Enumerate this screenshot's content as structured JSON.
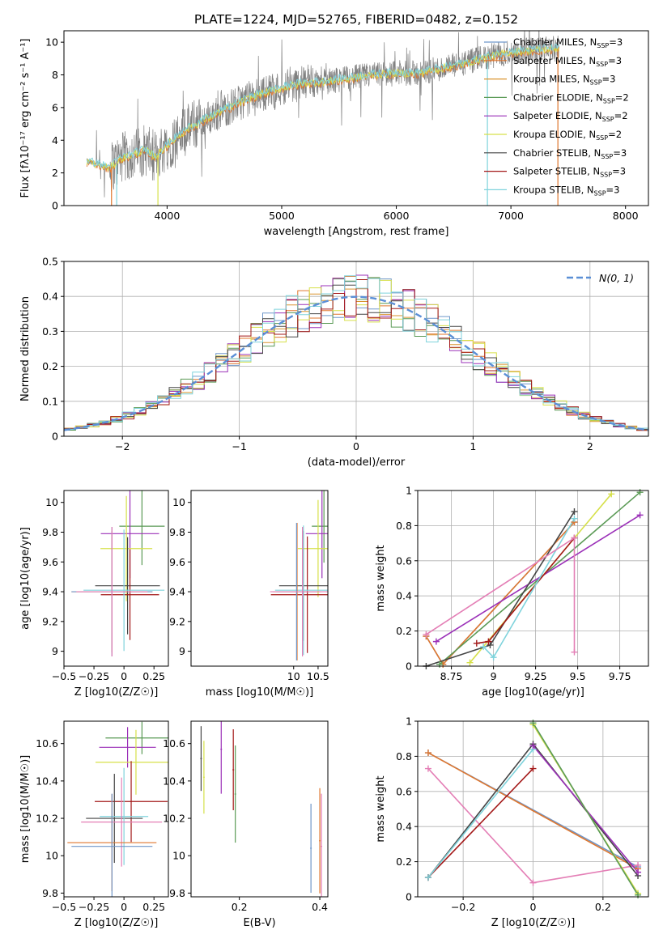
{
  "figure_title": "PLATE=1224, MJD=52765, FIBERID=0482, z=0.152",
  "colors": {
    "data": "#808080",
    "chabrier_miles": "#6f96c9",
    "salpeter_miles": "#e0772e",
    "kroupa_miles": "#d9932e",
    "chabrier_elodie": "#5a9a55",
    "salpeter_elodie": "#9b30b8",
    "kroupa_elodie": "#d6e04a",
    "chabrier_stelib": "#454545",
    "salpeter_stelib": "#a31818",
    "kroupa_stelib": "#7fd3dc",
    "pink": "#e47fb6",
    "gauss": "#5b8fd6"
  },
  "chart_data": [
    {
      "id": "spectrum",
      "type": "line",
      "xlabel": "wavelength [Angstrom, rest frame]",
      "ylabel": "Flux [fλ10⁻¹⁷ erg cm⁻² s⁻¹ A⁻¹]",
      "xlim": [
        3100,
        8200
      ],
      "ylim": [
        0,
        10.7
      ],
      "xticks": [
        4000,
        5000,
        6000,
        7000,
        8000
      ],
      "yticks": [
        0,
        2,
        4,
        6,
        8,
        10
      ],
      "legend": [
        "Chabrier MILES, N_SSP=3",
        "Salpeter MILES, N_SSP=3",
        "Kroupa MILES, N_SSP=3",
        "Chabrier ELODIE, N_SSP=2",
        "Salpeter ELODIE, N_SSP=2",
        "Kroupa ELODIE, N_SSP=2",
        "Chabrier STELIB, N_SSP=3",
        "Salpeter STELIB, N_SSP=3",
        "Kroupa STELIB, N_SSP=3"
      ],
      "legend_location": "upper right",
      "continuum_x": [
        3300,
        3500,
        3600,
        3700,
        3800,
        3900,
        4000,
        4200,
        4400,
        4600,
        4800,
        5000,
        5200,
        5400,
        5600,
        5800,
        6000,
        6200,
        6400,
        6600,
        6800,
        7000,
        7200,
        7400
      ],
      "continuum_y": [
        2.7,
        2.3,
        2.9,
        3.1,
        3.4,
        3.0,
        3.7,
        4.8,
        5.5,
        6.2,
        6.8,
        7.2,
        7.5,
        7.6,
        7.8,
        8.0,
        8.1,
        8.1,
        8.4,
        8.7,
        9.1,
        9.4,
        9.5,
        9.6
      ]
    },
    {
      "id": "residuals",
      "type": "histogram",
      "xlabel": "(data-model)/error",
      "ylabel": "Normed distribution",
      "xlim": [
        -2.5,
        2.5
      ],
      "ylim": [
        0,
        0.5
      ],
      "xticks": [
        -2,
        -1,
        0,
        1,
        2
      ],
      "yticks": [
        0.0,
        0.1,
        0.2,
        0.3,
        0.4,
        0.5
      ],
      "gaussian_label": "N(0, 1)",
      "grid": true
    },
    {
      "id": "age_vs_Z",
      "type": "scatter",
      "xlabel": "Z [log10(Z/Z☉)]",
      "ylabel": "age [log10(age/yr)]",
      "xlim": [
        -0.5,
        0.37
      ],
      "ylim": [
        8.9,
        10.08
      ],
      "xticks": [
        -0.5,
        -0.25,
        0.0,
        0.25
      ],
      "yticks": [
        9.0,
        9.2,
        9.4,
        9.6,
        9.8,
        10.0
      ],
      "points": [
        {
          "x": 0.15,
          "y": 9.84,
          "c": "chabrier_elodie"
        },
        {
          "x": 0.05,
          "y": 9.79,
          "c": "salpeter_elodie"
        },
        {
          "x": 0.02,
          "y": 9.69,
          "c": "kroupa_elodie"
        },
        {
          "x": 0.03,
          "y": 9.44,
          "c": "chabrier_stelib"
        },
        {
          "x": 0.05,
          "y": 9.38,
          "c": "salpeter_stelib"
        },
        {
          "x": 0.0,
          "y": 9.41,
          "c": "kroupa_stelib"
        },
        {
          "x": -0.1,
          "y": 9.4,
          "c": "salpeter_miles"
        },
        {
          "x": -0.1,
          "y": 9.4,
          "c": "chabrier_miles"
        },
        {
          "x": -0.1,
          "y": 9.4,
          "c": "pink"
        }
      ]
    },
    {
      "id": "age_vs_mass",
      "type": "scatter",
      "xlabel": "mass [log10(M/M☉)]",
      "ylabel": "",
      "xlim": [
        7.9,
        10.7
      ],
      "ylim": [
        8.9,
        10.08
      ],
      "xticks": [
        10.0,
        10.5
      ],
      "yticks": [
        9.0,
        9.2,
        9.4,
        9.6,
        9.8,
        10.0
      ],
      "points": [
        {
          "x": 10.62,
          "y": 9.84,
          "c": "chabrier_elodie"
        },
        {
          "x": 10.58,
          "y": 9.79,
          "c": "salpeter_elodie"
        },
        {
          "x": 10.5,
          "y": 9.69,
          "c": "kroupa_elodie"
        },
        {
          "x": 10.2,
          "y": 9.44,
          "c": "chabrier_stelib"
        },
        {
          "x": 10.28,
          "y": 9.38,
          "c": "salpeter_stelib"
        },
        {
          "x": 10.2,
          "y": 9.41,
          "c": "kroupa_stelib"
        },
        {
          "x": 10.07,
          "y": 9.4,
          "c": "salpeter_miles"
        },
        {
          "x": 10.06,
          "y": 9.4,
          "c": "chabrier_miles"
        },
        {
          "x": 10.18,
          "y": 9.4,
          "c": "pink"
        }
      ]
    },
    {
      "id": "weight_vs_age",
      "type": "line",
      "xlabel": "age [log10(age/yr)]",
      "ylabel": "mass weight",
      "xlim": [
        8.55,
        9.92
      ],
      "ylim": [
        0,
        1
      ],
      "xticks": [
        8.75,
        9.0,
        9.25,
        9.5,
        9.75
      ],
      "yticks": [
        0.0,
        0.2,
        0.4,
        0.6,
        0.8,
        1.0
      ],
      "grid": true,
      "series": [
        {
          "c": "chabrier_miles",
          "x": [
            8.6,
            8.7,
            9.48
          ],
          "y": [
            0.17,
            0.01,
            0.82
          ]
        },
        {
          "c": "salpeter_miles",
          "x": [
            8.6,
            8.7,
            9.48
          ],
          "y": [
            0.17,
            0.01,
            0.82
          ]
        },
        {
          "c": "chabrier_elodie",
          "x": [
            8.68,
            9.87
          ],
          "y": [
            0.01,
            0.99
          ]
        },
        {
          "c": "salpeter_elodie",
          "x": [
            8.66,
            9.87
          ],
          "y": [
            0.14,
            0.86
          ]
        },
        {
          "c": "kroupa_elodie",
          "x": [
            8.86,
            9.7
          ],
          "y": [
            0.02,
            0.98
          ]
        },
        {
          "c": "chabrier_stelib",
          "x": [
            8.6,
            8.98,
            9.48
          ],
          "y": [
            0.0,
            0.12,
            0.88
          ]
        },
        {
          "c": "salpeter_stelib",
          "x": [
            8.9,
            8.97,
            9.48
          ],
          "y": [
            0.13,
            0.14,
            0.73
          ]
        },
        {
          "c": "kroupa_stelib",
          "x": [
            8.94,
            9.0,
            9.48
          ],
          "y": [
            0.11,
            0.05,
            0.84
          ]
        },
        {
          "c": "pink",
          "x": [
            8.6,
            9.48,
            9.48
          ],
          "y": [
            0.18,
            0.73,
            0.08
          ]
        }
      ]
    },
    {
      "id": "mass_vs_Z",
      "type": "scatter",
      "xlabel": "Z [log10(Z/Z☉)]",
      "ylabel": "mass [log10(M/M☉)]",
      "xlim": [
        -0.5,
        0.37
      ],
      "ylim": [
        9.78,
        10.72
      ],
      "xticks": [
        -0.5,
        -0.25,
        0.0,
        0.25
      ],
      "yticks": [
        9.8,
        10.0,
        10.2,
        10.4,
        10.6
      ],
      "points": [
        {
          "x": 0.15,
          "y": 10.63,
          "c": "chabrier_elodie"
        },
        {
          "x": 0.03,
          "y": 10.58,
          "c": "salpeter_elodie"
        },
        {
          "x": 0.1,
          "y": 10.5,
          "c": "kroupa_elodie"
        },
        {
          "x": 0.06,
          "y": 10.29,
          "c": "salpeter_stelib"
        },
        {
          "x": -0.08,
          "y": 10.2,
          "c": "chabrier_stelib"
        },
        {
          "x": 0.0,
          "y": 10.21,
          "c": "kroupa_stelib"
        },
        {
          "x": -0.02,
          "y": 10.18,
          "c": "pink"
        },
        {
          "x": -0.1,
          "y": 10.07,
          "c": "salpeter_miles"
        },
        {
          "x": -0.1,
          "y": 10.05,
          "c": "chabrier_miles"
        }
      ]
    },
    {
      "id": "mass_vs_ebv",
      "type": "scatter",
      "xlabel": "E(B-V)",
      "ylabel": "",
      "xlim": [
        0.08,
        0.42
      ],
      "ylim": [
        9.78,
        10.72
      ],
      "xticks": [
        0.2,
        0.4
      ],
      "yticks": [
        9.8,
        10.0,
        10.2,
        10.4,
        10.6
      ],
      "points": [
        {
          "x": 0.105,
          "y": 10.52,
          "c": "chabrier_stelib"
        },
        {
          "x": 0.112,
          "y": 10.42,
          "c": "kroupa_elodie"
        },
        {
          "x": 0.155,
          "y": 10.57,
          "c": "salpeter_elodie"
        },
        {
          "x": 0.185,
          "y": 10.46,
          "c": "salpeter_stelib"
        },
        {
          "x": 0.19,
          "y": 10.33,
          "c": "chabrier_elodie"
        },
        {
          "x": 0.378,
          "y": 10.04,
          "c": "chabrier_miles"
        },
        {
          "x": 0.4,
          "y": 10.08,
          "c": "salpeter_miles"
        },
        {
          "x": 0.404,
          "y": 10.05,
          "c": "pink"
        }
      ]
    },
    {
      "id": "weight_vs_Z",
      "type": "line",
      "xlabel": "Z [log10(Z/Z☉)]",
      "ylabel": "mass weight",
      "xlim": [
        -0.33,
        0.33
      ],
      "ylim": [
        0,
        1
      ],
      "xticks": [
        -0.2,
        0.0,
        0.2
      ],
      "yticks": [
        0.0,
        0.2,
        0.4,
        0.6,
        0.8,
        1.0
      ],
      "grid": true,
      "series": [
        {
          "c": "chabrier_miles",
          "x": [
            -0.3,
            0.3
          ],
          "y": [
            0.82,
            0.17
          ]
        },
        {
          "c": "salpeter_miles",
          "x": [
            -0.3,
            0.3
          ],
          "y": [
            0.82,
            0.16
          ]
        },
        {
          "c": "pink",
          "x": [
            -0.3,
            0.0,
            0.3
          ],
          "y": [
            0.73,
            0.08,
            0.18
          ]
        },
        {
          "c": "chabrier_stelib",
          "x": [
            -0.3,
            0.0,
            0.3
          ],
          "y": [
            0.11,
            0.87,
            0.12
          ]
        },
        {
          "c": "salpeter_stelib",
          "x": [
            -0.3,
            0.0
          ],
          "y": [
            0.11,
            0.73
          ]
        },
        {
          "c": "kroupa_stelib",
          "x": [
            -0.3,
            0.0
          ],
          "y": [
            0.11,
            0.84
          ]
        },
        {
          "c": "salpeter_elodie",
          "x": [
            0.0,
            0.3
          ],
          "y": [
            0.86,
            0.14
          ]
        },
        {
          "c": "kroupa_elodie",
          "x": [
            0.0,
            0.3
          ],
          "y": [
            0.98,
            0.02
          ]
        },
        {
          "c": "chabrier_elodie",
          "x": [
            0.0,
            0.3
          ],
          "y": [
            0.99,
            0.01
          ]
        }
      ]
    }
  ]
}
